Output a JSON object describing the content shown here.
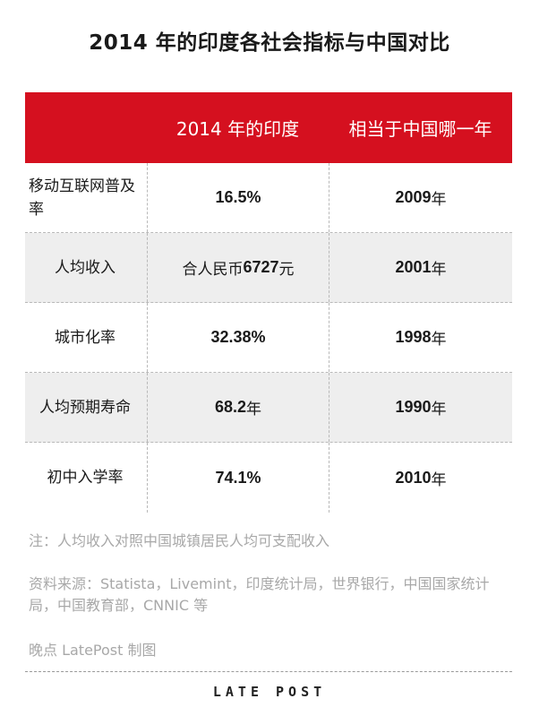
{
  "title": "2014 年的印度各社会指标与中国对比",
  "table": {
    "headers": [
      "",
      "2014 年的印度",
      "相当于中国哪一年"
    ],
    "rows": [
      {
        "indicator": "移动互联网普及率",
        "india_prefix": "",
        "india_num": "16.5%",
        "india_unit": "",
        "china_num": "2009",
        "china_unit": " 年"
      },
      {
        "indicator": "人均收入",
        "india_prefix": "合人民币 ",
        "india_num": "6727",
        "india_unit": " 元",
        "china_num": "2001",
        "china_unit": " 年"
      },
      {
        "indicator": "城市化率",
        "india_prefix": "",
        "india_num": "32.38%",
        "india_unit": "",
        "china_num": "1998",
        "china_unit": " 年"
      },
      {
        "indicator": "人均预期寿命",
        "india_prefix": "",
        "india_num": "68.2",
        "india_unit": " 年",
        "china_num": "1990",
        "china_unit": " 年"
      },
      {
        "indicator": "初中入学率",
        "india_prefix": "",
        "india_num": "74.1%",
        "india_unit": "",
        "china_num": "2010",
        "china_unit": " 年"
      }
    ]
  },
  "notes": {
    "note": "注：人均收入对照中国城镇居民人均可支配收入",
    "source": "资料来源：Statista，Livemint，印度统计局，世界银行，中国国家统计局，中国教育部，CNNIC 等",
    "credit": "晚点 LatePost 制图"
  },
  "brand": "LATE POST",
  "colors": {
    "header_bg": "#d5101f",
    "row_shade": "#eeeeee",
    "note_text": "#a8a8a8"
  }
}
